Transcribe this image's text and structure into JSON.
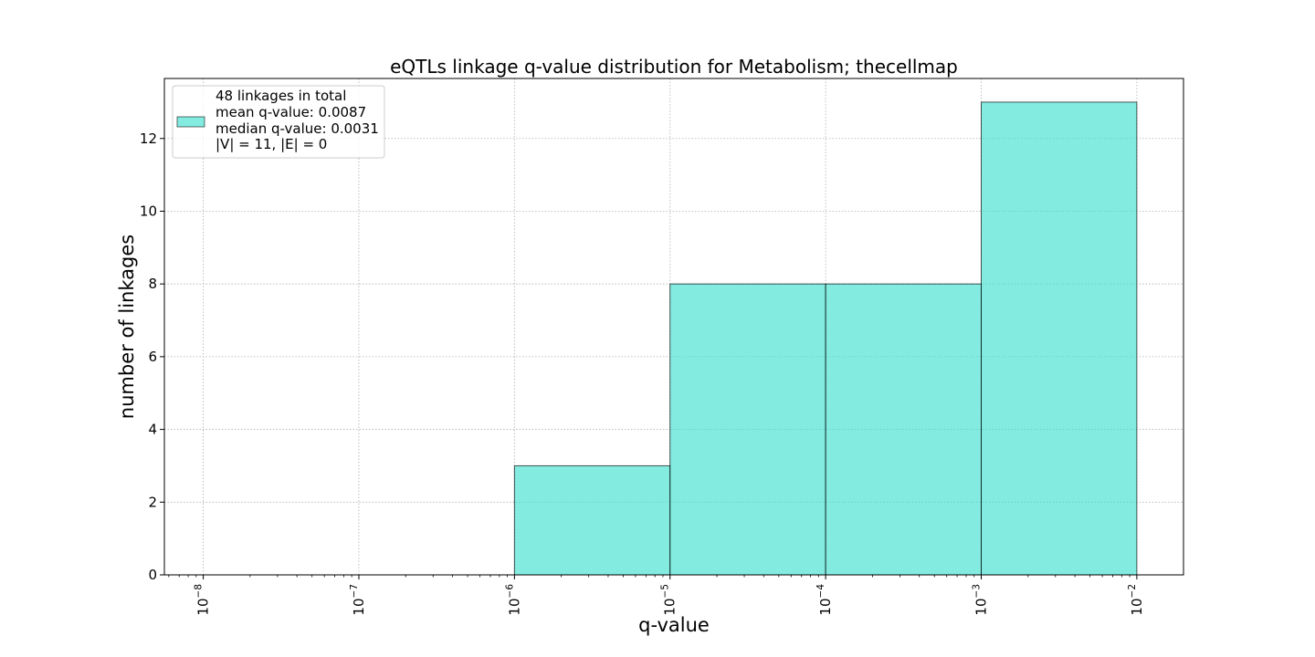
{
  "chart_data": {
    "type": "bar",
    "title": "eQTLs linkage q-value distribution for Metabolism; thecellmap",
    "xlabel": "q-value",
    "ylabel": "number of linkages",
    "x_scale": "log",
    "bins": [
      {
        "from": 1e-06,
        "to": 1e-05,
        "count": 3
      },
      {
        "from": 1e-05,
        "to": 0.0001,
        "count": 8
      },
      {
        "from": 0.0001,
        "to": 0.001,
        "count": 8
      },
      {
        "from": 0.001,
        "to": 0.01,
        "count": 13
      }
    ],
    "x_ticks": [
      {
        "value": 1e-08,
        "label": "10",
        "exp": "−8"
      },
      {
        "value": 1e-07,
        "label": "10",
        "exp": "−7"
      },
      {
        "value": 1e-06,
        "label": "10",
        "exp": "−6"
      },
      {
        "value": 1e-05,
        "label": "10",
        "exp": "−5"
      },
      {
        "value": 0.0001,
        "label": "10",
        "exp": "−4"
      },
      {
        "value": 0.001,
        "label": "10",
        "exp": "−3"
      },
      {
        "value": 0.01,
        "label": "10",
        "exp": "−2"
      }
    ],
    "y_ticks": [
      0,
      2,
      4,
      6,
      8,
      10,
      12
    ],
    "xlim_log10": [
      -8.25,
      -1.7
    ],
    "ylim": [
      0,
      13.65
    ],
    "grid": true,
    "legend": {
      "placement": "upper-left",
      "lines": [
        "48 linkages in total",
        "mean q-value: 0.0087",
        "median q-value: 0.0031",
        "|V| = 11, |E| = 0"
      ]
    },
    "colors": {
      "bar_fill": "#40E0D0",
      "bar_edge": "#000000"
    }
  }
}
